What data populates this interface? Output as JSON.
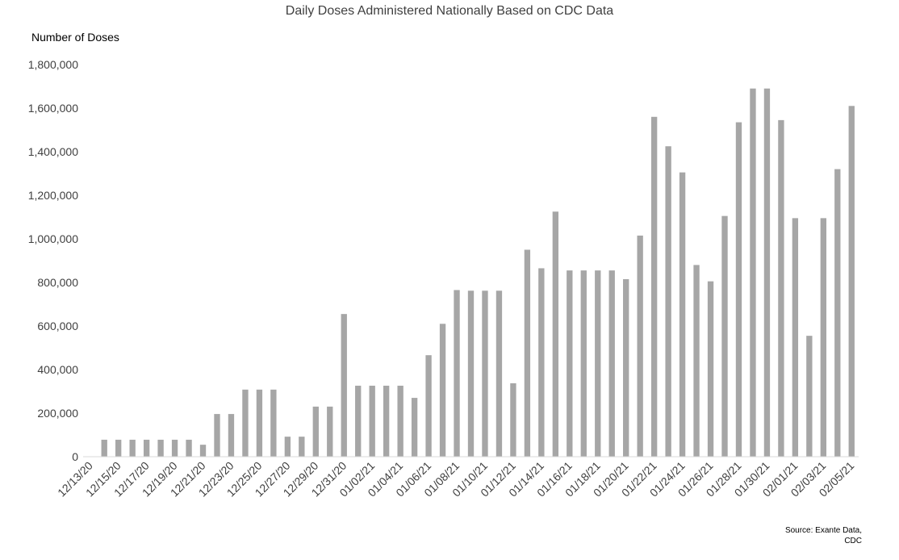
{
  "chart_data": {
    "type": "bar",
    "title": "Daily Doses Administered Nationally Based on CDC Data",
    "ylabel": "Number of Doses",
    "xlabel": "",
    "ylim": [
      0,
      1800000
    ],
    "yticks": [
      0,
      200000,
      400000,
      600000,
      800000,
      1000000,
      1200000,
      1400000,
      1600000,
      1800000
    ],
    "ytick_labels": [
      "0",
      "200,000",
      "400,000",
      "600,000",
      "800,000",
      "1,000,000",
      "1,200,000",
      "1,400,000",
      "1,600,000",
      "1,800,000"
    ],
    "grid": false,
    "bar_color": "#a6a6a6",
    "categories": [
      "12/13/20",
      "12/14/20",
      "12/15/20",
      "12/16/20",
      "12/17/20",
      "12/18/20",
      "12/19/20",
      "12/20/20",
      "12/21/20",
      "12/22/20",
      "12/23/20",
      "12/24/20",
      "12/25/20",
      "12/26/20",
      "12/27/20",
      "12/28/20",
      "12/29/20",
      "12/30/20",
      "12/31/20",
      "01/01/21",
      "01/02/21",
      "01/03/21",
      "01/04/21",
      "01/05/21",
      "01/06/21",
      "01/07/21",
      "01/08/21",
      "01/09/21",
      "01/10/21",
      "01/11/21",
      "01/12/21",
      "01/13/21",
      "01/14/21",
      "01/15/21",
      "01/16/21",
      "01/17/21",
      "01/18/21",
      "01/19/21",
      "01/20/21",
      "01/21/21",
      "01/22/21",
      "01/23/21",
      "01/24/21",
      "01/25/21",
      "01/26/21",
      "01/27/21",
      "01/28/21",
      "01/29/21",
      "01/30/21",
      "01/31/21",
      "02/01/21",
      "02/02/21",
      "02/03/21",
      "02/04/21",
      "02/05/21"
    ],
    "values": [
      0,
      78000,
      78000,
      78000,
      78000,
      78000,
      78000,
      78000,
      55000,
      196000,
      196000,
      308000,
      308000,
      308000,
      92000,
      92000,
      230000,
      230000,
      655000,
      326000,
      326000,
      326000,
      326000,
      270000,
      466000,
      610000,
      765000,
      762000,
      762000,
      762000,
      337000,
      950000,
      865000,
      1125000,
      855000,
      855000,
      855000,
      855000,
      815000,
      1015000,
      1560000,
      1425000,
      1305000,
      880000,
      805000,
      1105000,
      1535000,
      1690000,
      1690000,
      1545000,
      1095000,
      555000,
      1095000,
      1320000,
      1610000
    ],
    "tick_every": 2
  },
  "source": {
    "line1": "Source: Exante Data,",
    "line2": "CDC"
  }
}
